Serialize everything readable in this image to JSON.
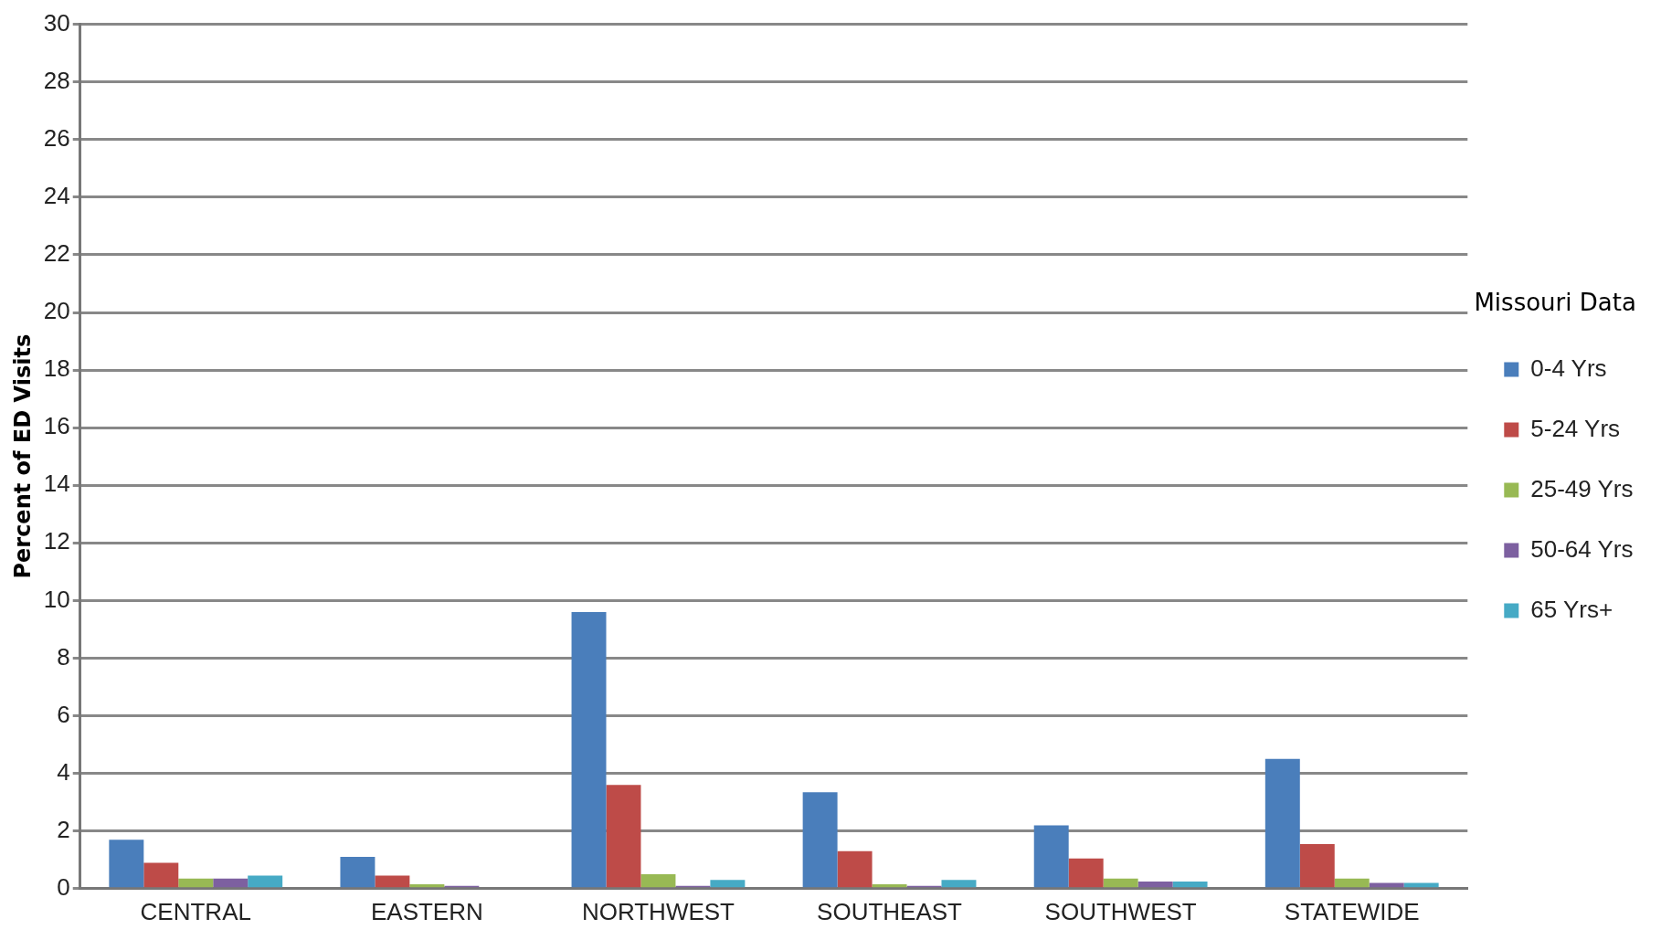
{
  "chart_data": {
    "type": "bar",
    "ylabel": "Percent of ED Visits",
    "legend_title": "Missouri Data",
    "categories": [
      "CENTRAL",
      "EASTERN",
      "NORTHWEST",
      "SOUTHEAST",
      "SOUTHWEST",
      "STATEWIDE"
    ],
    "series": [
      {
        "name": "0-4 Yrs",
        "color": "#4a7ebb",
        "values": [
          1.7,
          1.1,
          9.6,
          3.35,
          2.2,
          4.5
        ]
      },
      {
        "name": "5-24 Yrs",
        "color": "#be4b48",
        "values": [
          0.9,
          0.45,
          3.6,
          1.3,
          1.05,
          1.55
        ]
      },
      {
        "name": "25-49 Yrs",
        "color": "#98b954",
        "values": [
          0.35,
          0.15,
          0.5,
          0.15,
          0.35,
          0.35
        ]
      },
      {
        "name": "50-64 Yrs",
        "color": "#7d60a0",
        "values": [
          0.35,
          0.1,
          0.1,
          0.1,
          0.25,
          0.2
        ]
      },
      {
        "name": "65 Yrs+",
        "color": "#46aac5",
        "values": [
          0.45,
          0,
          0.3,
          0.3,
          0.25,
          0.2
        ]
      }
    ],
    "ylim": [
      0,
      30
    ],
    "yticks": [
      0,
      2,
      4,
      6,
      8,
      10,
      12,
      14,
      16,
      18,
      20,
      22,
      24,
      26,
      28,
      30
    ],
    "grid": "y",
    "legend": "right"
  }
}
